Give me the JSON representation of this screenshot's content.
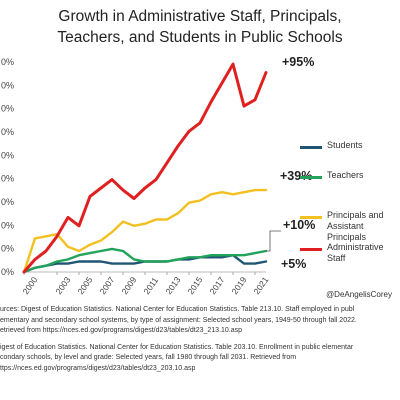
{
  "title_lines": [
    "Growth in Administrative Staff, Principals,",
    "Teachers, and Students in Public Schools"
  ],
  "chart_data": {
    "type": "line",
    "title": "Growth in Administrative Staff, Principals, Teachers, and Students in Public Schools",
    "x_ticks": [
      "2000",
      "2003",
      "2005",
      "2007",
      "2009",
      "2011",
      "2013",
      "2015",
      "2017",
      "2019",
      "2021"
    ],
    "y_tick_labels": [
      "0%",
      "0%",
      "0%",
      "0%",
      "0%",
      "0%",
      "0%",
      "0%",
      "0%",
      "0%"
    ],
    "ylim": [
      0,
      100
    ],
    "grid": false,
    "legend_position": "right",
    "series": [
      {
        "name": "Students",
        "color": "#1f5673",
        "end_label": "+5%",
        "points": [
          [
            2000,
            0
          ],
          [
            2001,
            2
          ],
          [
            2002,
            3
          ],
          [
            2003,
            4
          ],
          [
            2004,
            4
          ],
          [
            2005,
            5
          ],
          [
            2006,
            5
          ],
          [
            2007,
            5
          ],
          [
            2008,
            4
          ],
          [
            2009,
            4
          ],
          [
            2010,
            4
          ],
          [
            2011,
            5
          ],
          [
            2012,
            5
          ],
          [
            2013,
            5
          ],
          [
            2014,
            6
          ],
          [
            2015,
            6
          ],
          [
            2016,
            7
          ],
          [
            2017,
            7
          ],
          [
            2018,
            7
          ],
          [
            2019,
            8
          ],
          [
            2020,
            4
          ],
          [
            2021,
            4
          ],
          [
            2022,
            5
          ]
        ]
      },
      {
        "name": "Teachers",
        "color": "#22a35a",
        "end_label": "+10%",
        "points": [
          [
            2000,
            0
          ],
          [
            2001,
            2
          ],
          [
            2002,
            3
          ],
          [
            2003,
            5
          ],
          [
            2004,
            6
          ],
          [
            2005,
            8
          ],
          [
            2006,
            9
          ],
          [
            2007,
            10
          ],
          [
            2008,
            11
          ],
          [
            2009,
            10
          ],
          [
            2010,
            6
          ],
          [
            2011,
            5
          ],
          [
            2012,
            5
          ],
          [
            2013,
            5
          ],
          [
            2014,
            6
          ],
          [
            2015,
            7
          ],
          [
            2016,
            7
          ],
          [
            2017,
            8
          ],
          [
            2018,
            8
          ],
          [
            2019,
            8
          ],
          [
            2020,
            8
          ],
          [
            2021,
            9
          ],
          [
            2022,
            10
          ]
        ]
      },
      {
        "name": "Principals and Assistant Principals",
        "color": "#f2c021",
        "end_label": "+39%",
        "points": [
          [
            2000,
            0
          ],
          [
            2001,
            16
          ],
          [
            2002,
            17
          ],
          [
            2003,
            18
          ],
          [
            2004,
            12
          ],
          [
            2005,
            10
          ],
          [
            2006,
            13
          ],
          [
            2007,
            15
          ],
          [
            2008,
            19
          ],
          [
            2009,
            24
          ],
          [
            2010,
            22
          ],
          [
            2011,
            23
          ],
          [
            2012,
            25
          ],
          [
            2013,
            25
          ],
          [
            2014,
            28
          ],
          [
            2015,
            33
          ],
          [
            2016,
            34
          ],
          [
            2017,
            37
          ],
          [
            2018,
            38
          ],
          [
            2019,
            37
          ],
          [
            2020,
            38
          ],
          [
            2021,
            39
          ],
          [
            2022,
            39
          ]
        ]
      },
      {
        "name": "Administrative Staff",
        "color": "#e02020",
        "end_label": "+95%",
        "points": [
          [
            2000,
            0
          ],
          [
            2001,
            6
          ],
          [
            2002,
            10
          ],
          [
            2003,
            17
          ],
          [
            2004,
            26
          ],
          [
            2005,
            22
          ],
          [
            2006,
            36
          ],
          [
            2007,
            40
          ],
          [
            2008,
            44
          ],
          [
            2009,
            39
          ],
          [
            2010,
            35
          ],
          [
            2011,
            40
          ],
          [
            2012,
            44
          ],
          [
            2013,
            52
          ],
          [
            2014,
            60
          ],
          [
            2015,
            67
          ],
          [
            2016,
            71
          ],
          [
            2017,
            81
          ],
          [
            2018,
            90
          ],
          [
            2019,
            99
          ],
          [
            2020,
            79
          ],
          [
            2021,
            82
          ],
          [
            2022,
            95
          ]
        ]
      }
    ]
  },
  "legend_labels": [
    "Students",
    "Teachers",
    "Principals and Assistant Principals",
    "Administrative Staff"
  ],
  "handle": "@DeAngelisCorey",
  "notes": [
    [
      "urces: Digest of Education Statistics. National Center for Education Statistics. Table 213.10. Staff employed in publ",
      "ementary and secondary school systems, by type of assignment: Selected school years, 1949-50 through fall 2022.",
      "etrieved from https://nces.ed.gov/programs/digest/d23/tables/dt23_213.10.asp"
    ],
    [
      "igest of Education Statistics. National Center for Education Statistics. Table 203.10. Enrollment in public elementar",
      "condary schools, by level and grade: Selected years, fall 1980 through fall 2031. Retrieved from",
      "ttps://nces.ed.gov/programs/digest/d23/tables/dt23_203.10.asp"
    ]
  ]
}
